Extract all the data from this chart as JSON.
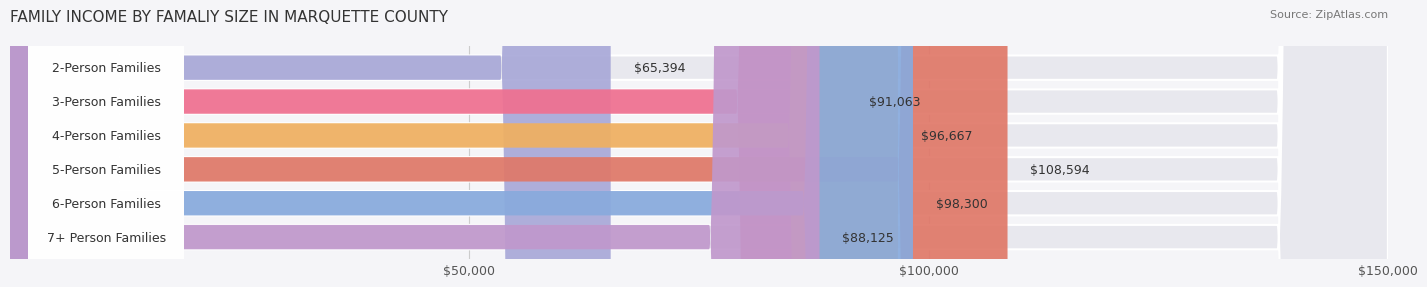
{
  "title": "FAMILY INCOME BY FAMALIY SIZE IN MARQUETTE COUNTY",
  "source": "Source: ZipAtlas.com",
  "categories": [
    "2-Person Families",
    "3-Person Families",
    "4-Person Families",
    "5-Person Families",
    "6-Person Families",
    "7+ Person Families"
  ],
  "values": [
    65394,
    91063,
    96667,
    108594,
    98300,
    88125
  ],
  "bar_colors": [
    "#a8a8d8",
    "#f07090",
    "#f0b060",
    "#e07868",
    "#88aadd",
    "#c098cc"
  ],
  "bar_bg_color": "#e8e8ee",
  "value_labels": [
    "$65,394",
    "$91,063",
    "$96,667",
    "$108,594",
    "$98,300",
    "$88,125"
  ],
  "xlim": [
    0,
    150000
  ],
  "xticks": [
    0,
    50000,
    100000,
    150000
  ],
  "xticklabels": [
    "",
    "$50,000",
    "$100,000",
    "$150,000"
  ],
  "background_color": "#f5f5f8",
  "title_fontsize": 11,
  "label_fontsize": 9,
  "value_fontsize": 9,
  "source_fontsize": 8
}
